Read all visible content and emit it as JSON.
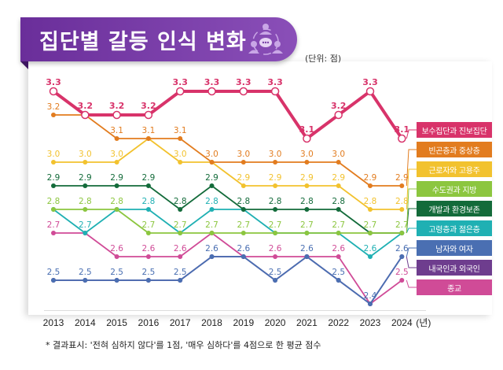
{
  "header": {
    "title": "집단별 갈등 인식 변화",
    "unit": "(단위: 점)",
    "icon": "people-speech-bubble-icon"
  },
  "footnote": "* 결과표시: '전혀 심하지 않다'를 1점, '매우 심하다'를 4점으로 한 평균 점수",
  "chart_data": {
    "type": "line",
    "title": "집단별 갈등 인식 변화",
    "xlabel": "(년)",
    "ylabel": "",
    "grid": false,
    "legend_placement": "right",
    "x": [
      "2013",
      "2014",
      "2015",
      "2016",
      "2017",
      "2018",
      "2019",
      "2020",
      "2021",
      "2022",
      "2023",
      "2024"
    ],
    "series": [
      {
        "name": "보수집단과 진보집단",
        "color": "#d8336a",
        "values": [
          3.3,
          3.2,
          3.2,
          3.2,
          3.3,
          3.3,
          3.3,
          3.3,
          3.1,
          3.2,
          3.3,
          3.1
        ]
      },
      {
        "name": "빈곤층과 중상층",
        "color": "#e27c1f",
        "values": [
          3.2,
          3.2,
          3.1,
          3.1,
          3.1,
          3.0,
          3.0,
          3.0,
          3.0,
          3.0,
          2.9,
          2.9
        ]
      },
      {
        "name": "근로자와 고용주",
        "color": "#f2c22e",
        "values": [
          3.0,
          3.0,
          3.0,
          3.1,
          3.0,
          3.0,
          2.9,
          2.9,
          2.9,
          2.9,
          2.8,
          2.8
        ]
      },
      {
        "name": "수도권과 지방",
        "color": "#8cc63f",
        "values": [
          2.8,
          2.8,
          2.8,
          2.7,
          2.7,
          2.7,
          2.7,
          2.7,
          2.7,
          2.7,
          2.7,
          2.7
        ]
      },
      {
        "name": "개발과 환경보존",
        "color": "#136b3a",
        "values": [
          2.9,
          2.9,
          2.9,
          2.9,
          2.8,
          2.9,
          2.8,
          2.8,
          2.8,
          2.8,
          2.7,
          2.7
        ]
      },
      {
        "name": "고령층과 젊은층",
        "color": "#1fb0b3",
        "values": [
          2.8,
          2.7,
          2.8,
          2.8,
          2.7,
          2.8,
          2.8,
          2.7,
          2.7,
          2.7,
          2.6,
          2.7
        ]
      },
      {
        "name": "남자와 여자",
        "color": "#4a6fb2",
        "values": [
          2.5,
          2.5,
          2.5,
          2.5,
          2.5,
          2.6,
          2.6,
          2.5,
          2.6,
          2.5,
          2.4,
          2.6
        ]
      },
      {
        "name": "내국인과 외국인",
        "color": "#6e3d8e",
        "values": [
          2.5,
          2.5,
          2.5,
          2.5,
          2.5,
          2.6,
          2.6,
          2.5,
          2.6,
          2.5,
          2.4,
          2.6
        ]
      },
      {
        "name": "종교",
        "color": "#d04b97",
        "values": [
          2.7,
          2.7,
          2.6,
          2.6,
          2.6,
          2.7,
          2.6,
          2.6,
          2.6,
          2.6,
          2.4,
          2.5
        ]
      }
    ]
  }
}
